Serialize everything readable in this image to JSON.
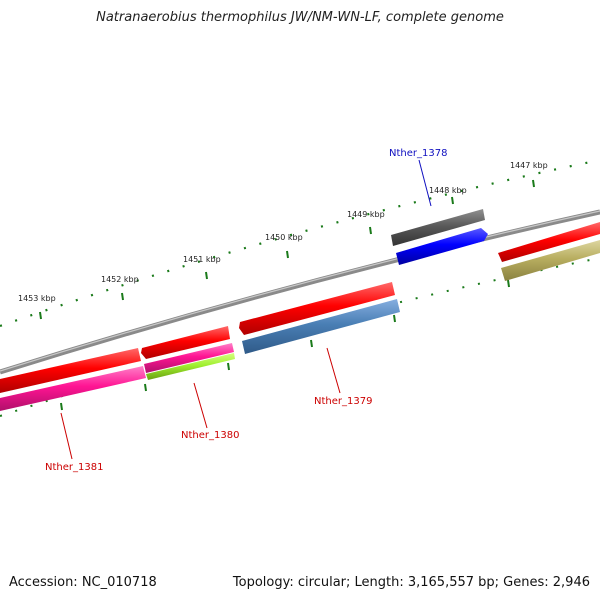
{
  "title": "Natranaerobius thermophilus JW/NM-WN-LF, complete genome",
  "footer": {
    "accession": "Accession: NC_010718",
    "topology": "Topology: circular; Length: 3,165,557 bp; Genes: 2,946"
  },
  "ruler": {
    "ticks": [
      "1447 kbp",
      "1448 kbp",
      "1449 kbp",
      "1450 kbp",
      "1451 kbp",
      "1452 kbp",
      "1453 kbp"
    ]
  },
  "genes": [
    {
      "name": "Nther_1378",
      "color": "#1010c0"
    },
    {
      "name": "Nther_1379",
      "color": "#cc0000"
    },
    {
      "name": "Nther_1380",
      "color": "#cc0000"
    },
    {
      "name": "Nther_1381",
      "color": "#cc0000"
    }
  ],
  "colors": {
    "backbone": "#808080",
    "cds_forward": "#ee0000",
    "gene_blue": "#0000ee",
    "gene_steelblue": "#4a7fb5",
    "gene_magenta": "#ee1493",
    "gene_lime": "#99ee22",
    "gene_olive": "#b8ae60",
    "gene_gray": "#5a5a5a",
    "tick": "#1a7a1a"
  }
}
